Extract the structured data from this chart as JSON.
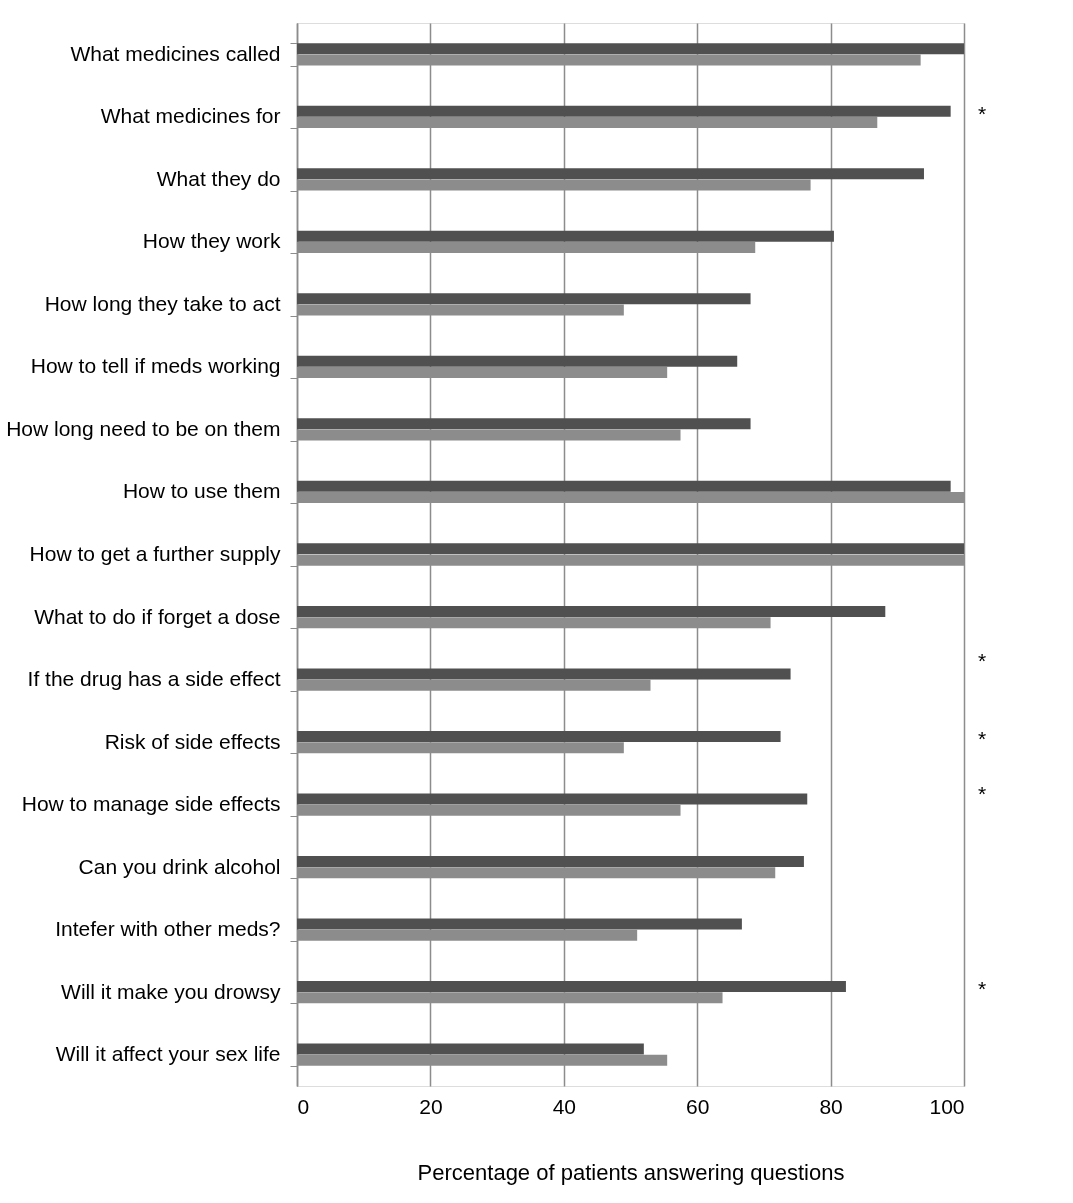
{
  "chart_data": {
    "type": "bar",
    "orientation": "horizontal",
    "xlabel": "Percentage of patients answering questions",
    "categories": [
      "What medicines called",
      "What medicines for",
      "What they do",
      "How they work",
      "How long they take to act",
      "How to tell if meds working",
      "How long need to be on them",
      "How to use them",
      "How to get a further supply",
      "What to do if forget a dose",
      "If the drug has a side effect",
      "Risk of side effects",
      "How to manage side effects",
      "Can you drink alcohol",
      "Intefer with other meds?",
      "Will it make you drowsy",
      "Will it affect your sex life"
    ],
    "series": [
      {
        "color": "#505050",
        "values": [
          100,
          98,
          94,
          80.5,
          68,
          66,
          68,
          98,
          100,
          88.2,
          74,
          72.5,
          76.5,
          76,
          66.7,
          82.3,
          52
        ]
      },
      {
        "color": "#8c8c8c",
        "values": [
          93.5,
          87,
          77,
          68.7,
          49,
          55.5,
          57.5,
          100,
          100,
          71,
          53,
          49,
          57.5,
          71.7,
          51,
          63.8,
          55.5
        ]
      }
    ],
    "xlim": [
      0,
      100
    ],
    "xticks": [
      0,
      20,
      40,
      60,
      80,
      100
    ],
    "grid": "x",
    "legend": false,
    "annotations": [
      "*",
      "*",
      "*",
      "*",
      "*"
    ]
  }
}
